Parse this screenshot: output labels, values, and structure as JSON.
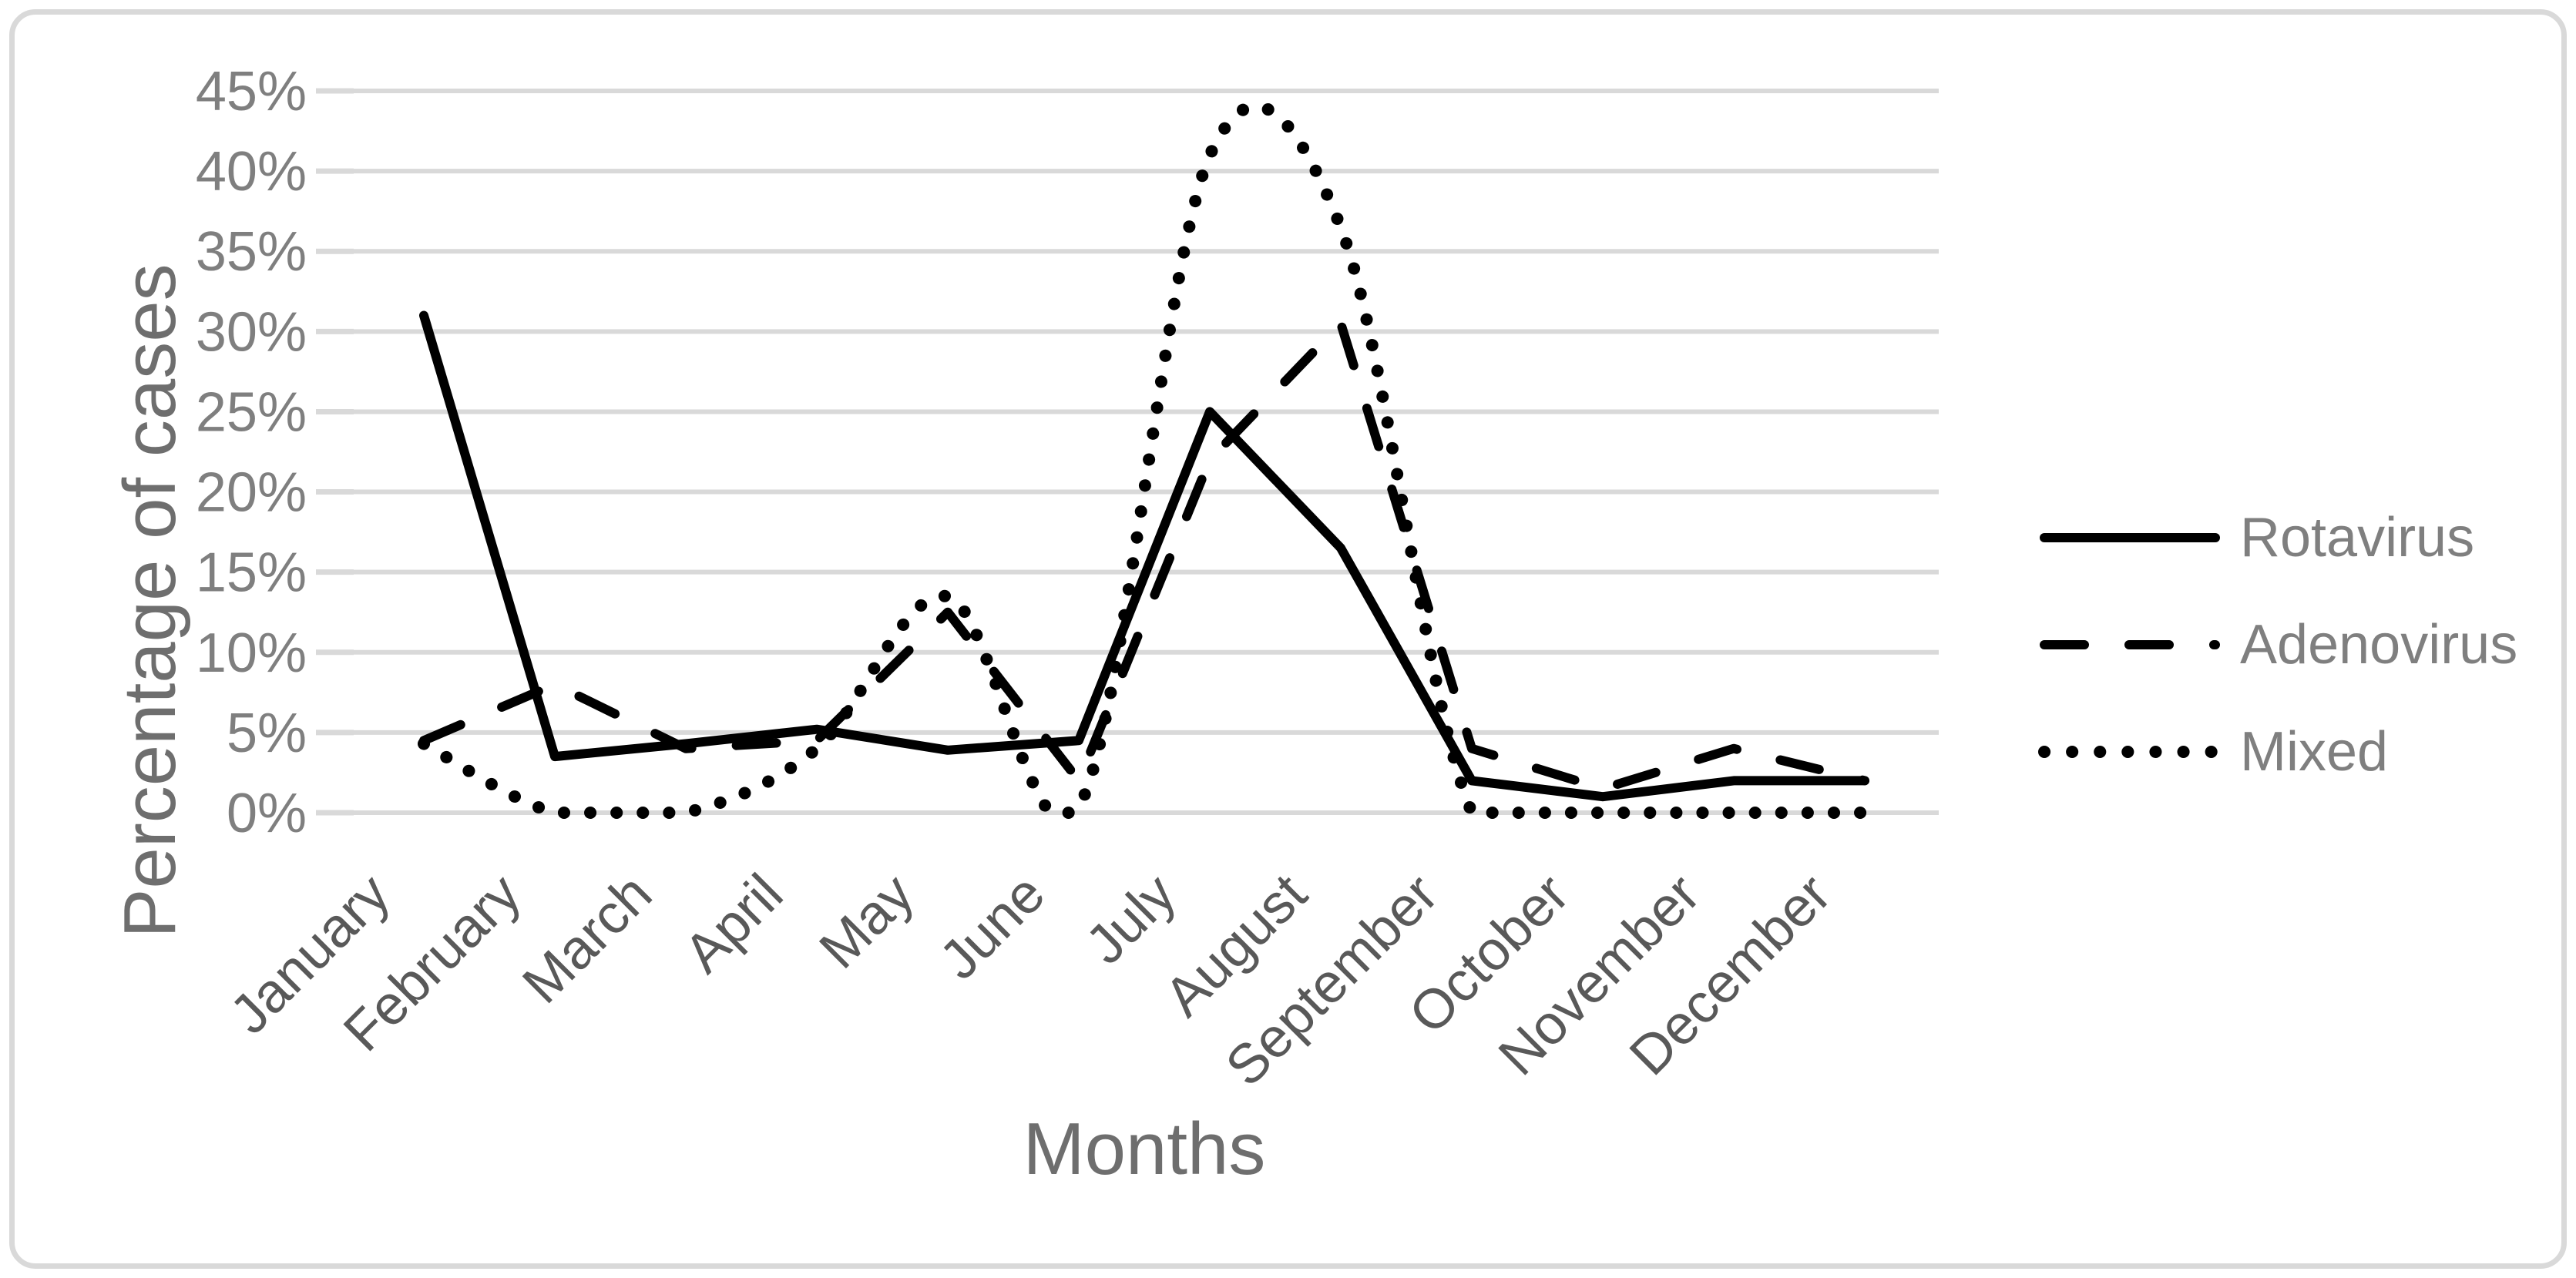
{
  "figure": {
    "background": "#ffffff",
    "border_color": "#d9d9d9"
  },
  "chart_data": {
    "type": "line",
    "title": "",
    "xlabel": "Months",
    "ylabel": "Percentage of cases",
    "categories": [
      "January",
      "February",
      "March",
      "April",
      "May",
      "June",
      "July",
      "August",
      "September",
      "October",
      "November",
      "December"
    ],
    "y_tick_labels": [
      "0%",
      "5%",
      "10%",
      "15%",
      "20%",
      "25%",
      "30%",
      "35%",
      "40%",
      "45%"
    ],
    "ylim": [
      0,
      45
    ],
    "grid": true,
    "legend_position": "right",
    "series": [
      {
        "name": "Rotavirus",
        "line_style": "solid",
        "color": "#000000",
        "smooth": false,
        "values": [
          31,
          3.5,
          4.3,
          5.2,
          3.9,
          4.5,
          25,
          16.5,
          2,
          1,
          2,
          2
        ]
      },
      {
        "name": "Adenovirus",
        "line_style": "dashed",
        "color": "#000000",
        "smooth": false,
        "values": [
          4.5,
          8,
          4,
          4.5,
          12.5,
          2,
          22,
          30.5,
          4,
          1.5,
          4,
          2
        ]
      },
      {
        "name": "Mixed",
        "line_style": "dotted",
        "color": "#000000",
        "smooth": true,
        "values": [
          4.3,
          0,
          0,
          4,
          13.5,
          0.3,
          41,
          36.5,
          0,
          0,
          0,
          0
        ]
      }
    ],
    "colors": {
      "gridline": "#d9d9d9",
      "tick_label": "#7f7f7f",
      "category_label": "#595959",
      "axis_title": "#6e6e6e",
      "legend_text": "#7f7f7f",
      "series_line": "#000000"
    }
  }
}
